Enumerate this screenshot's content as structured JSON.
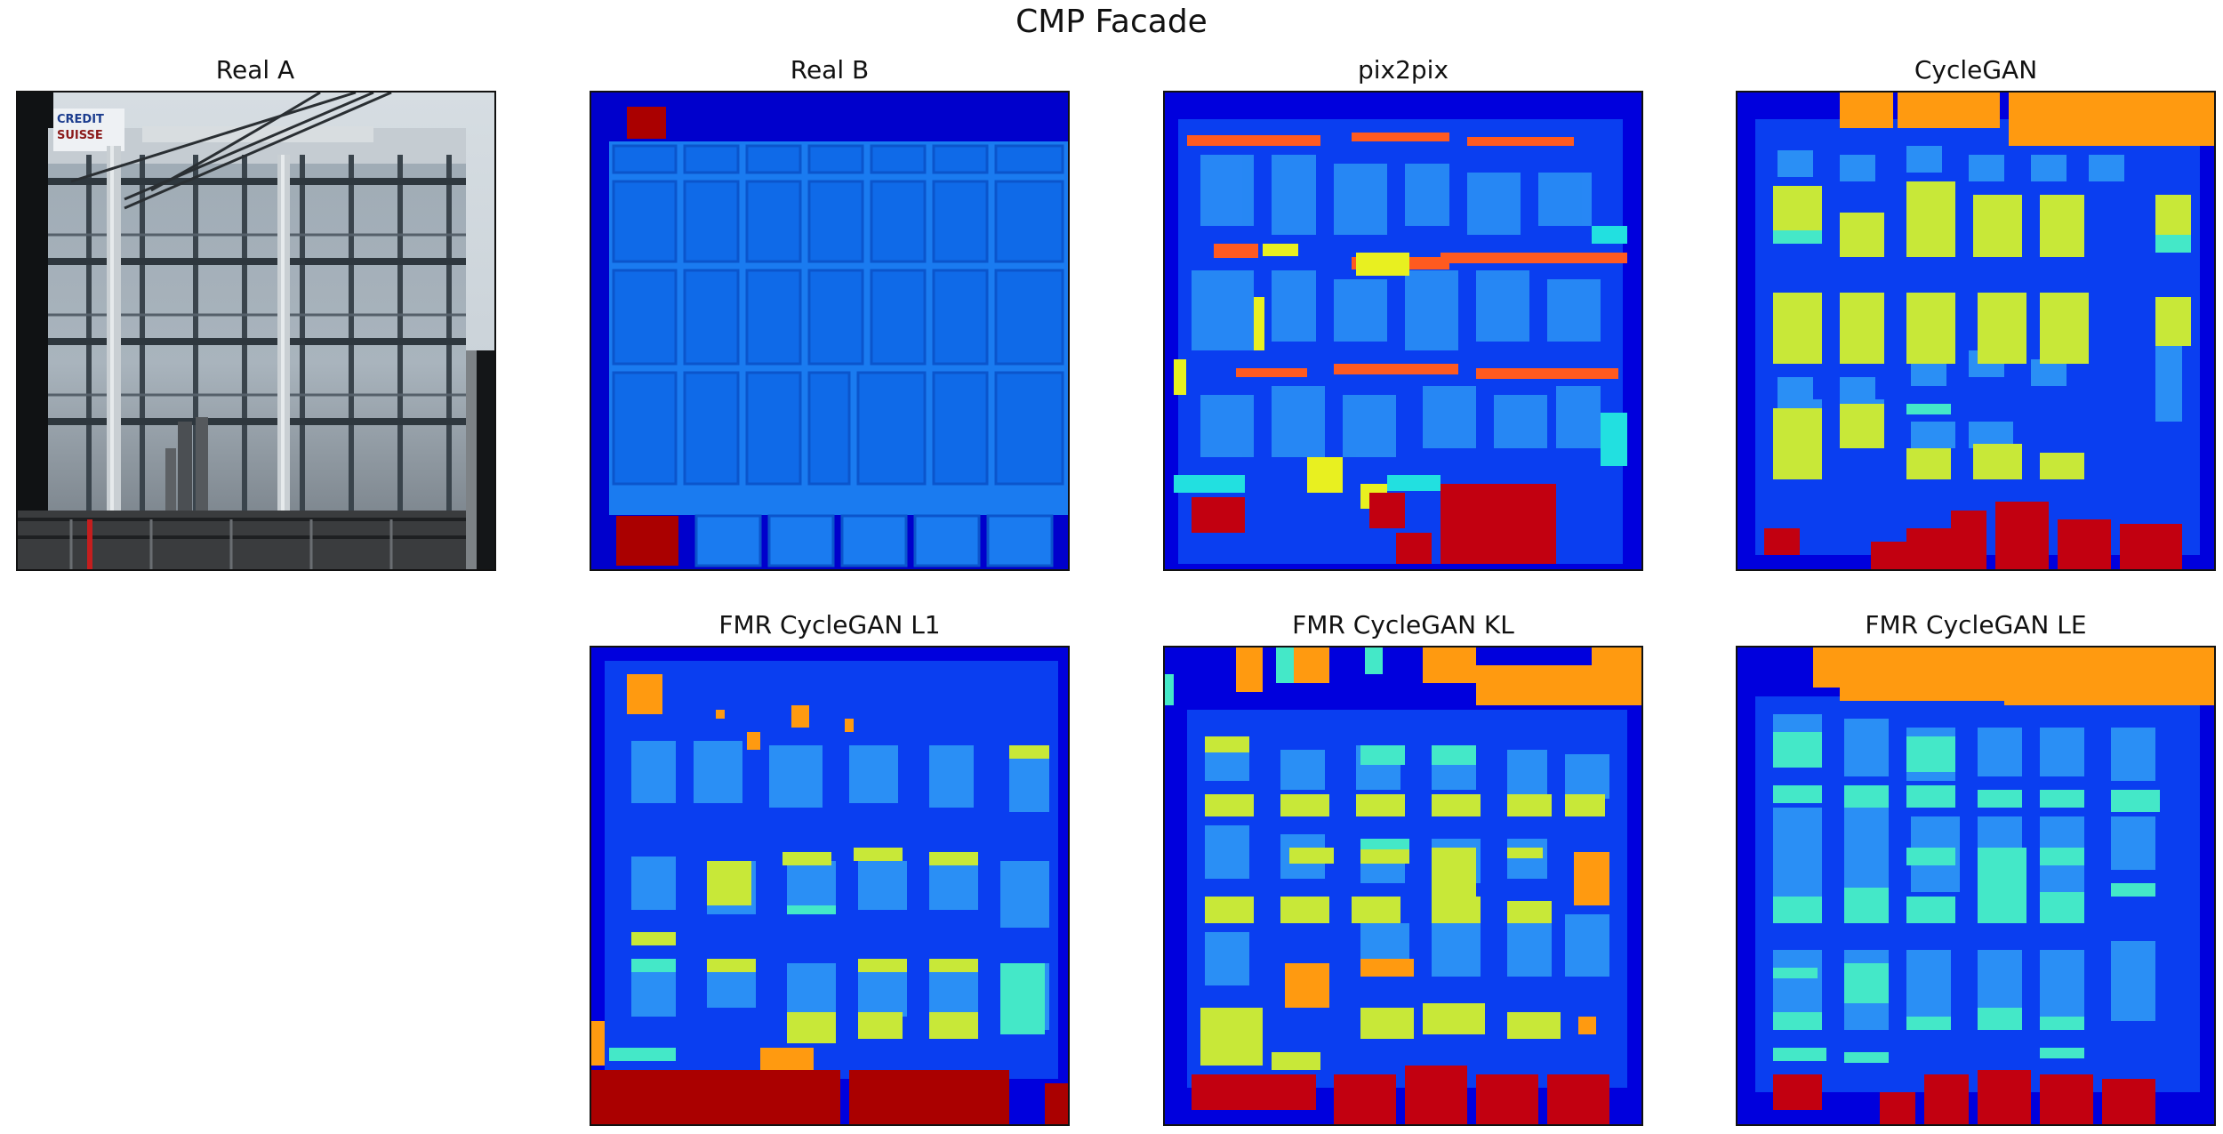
{
  "figure": {
    "title": "CMP Facade",
    "panels": [
      {
        "id": "real-a",
        "label": "Real A"
      },
      {
        "id": "real-b",
        "label": "Real B"
      },
      {
        "id": "pix2pix",
        "label": "pix2pix"
      },
      {
        "id": "cyclegan",
        "label": "CycleGAN"
      },
      {
        "id": "fmr-l1",
        "label": "FMR CycleGAN L1"
      },
      {
        "id": "fmr-kl",
        "label": "FMR CycleGAN KL"
      },
      {
        "id": "fmr-le",
        "label": "FMR CycleGAN LE"
      }
    ]
  },
  "photo": {
    "sign_text": [
      "CREDIT",
      "SUISSE"
    ]
  },
  "palette": {
    "background": "#0000dd",
    "window": "#1a6ff0",
    "door": "#aa0000",
    "cornice": "#ff9a10",
    "sill": "#c8e838",
    "balcony": "#44e8c8"
  }
}
